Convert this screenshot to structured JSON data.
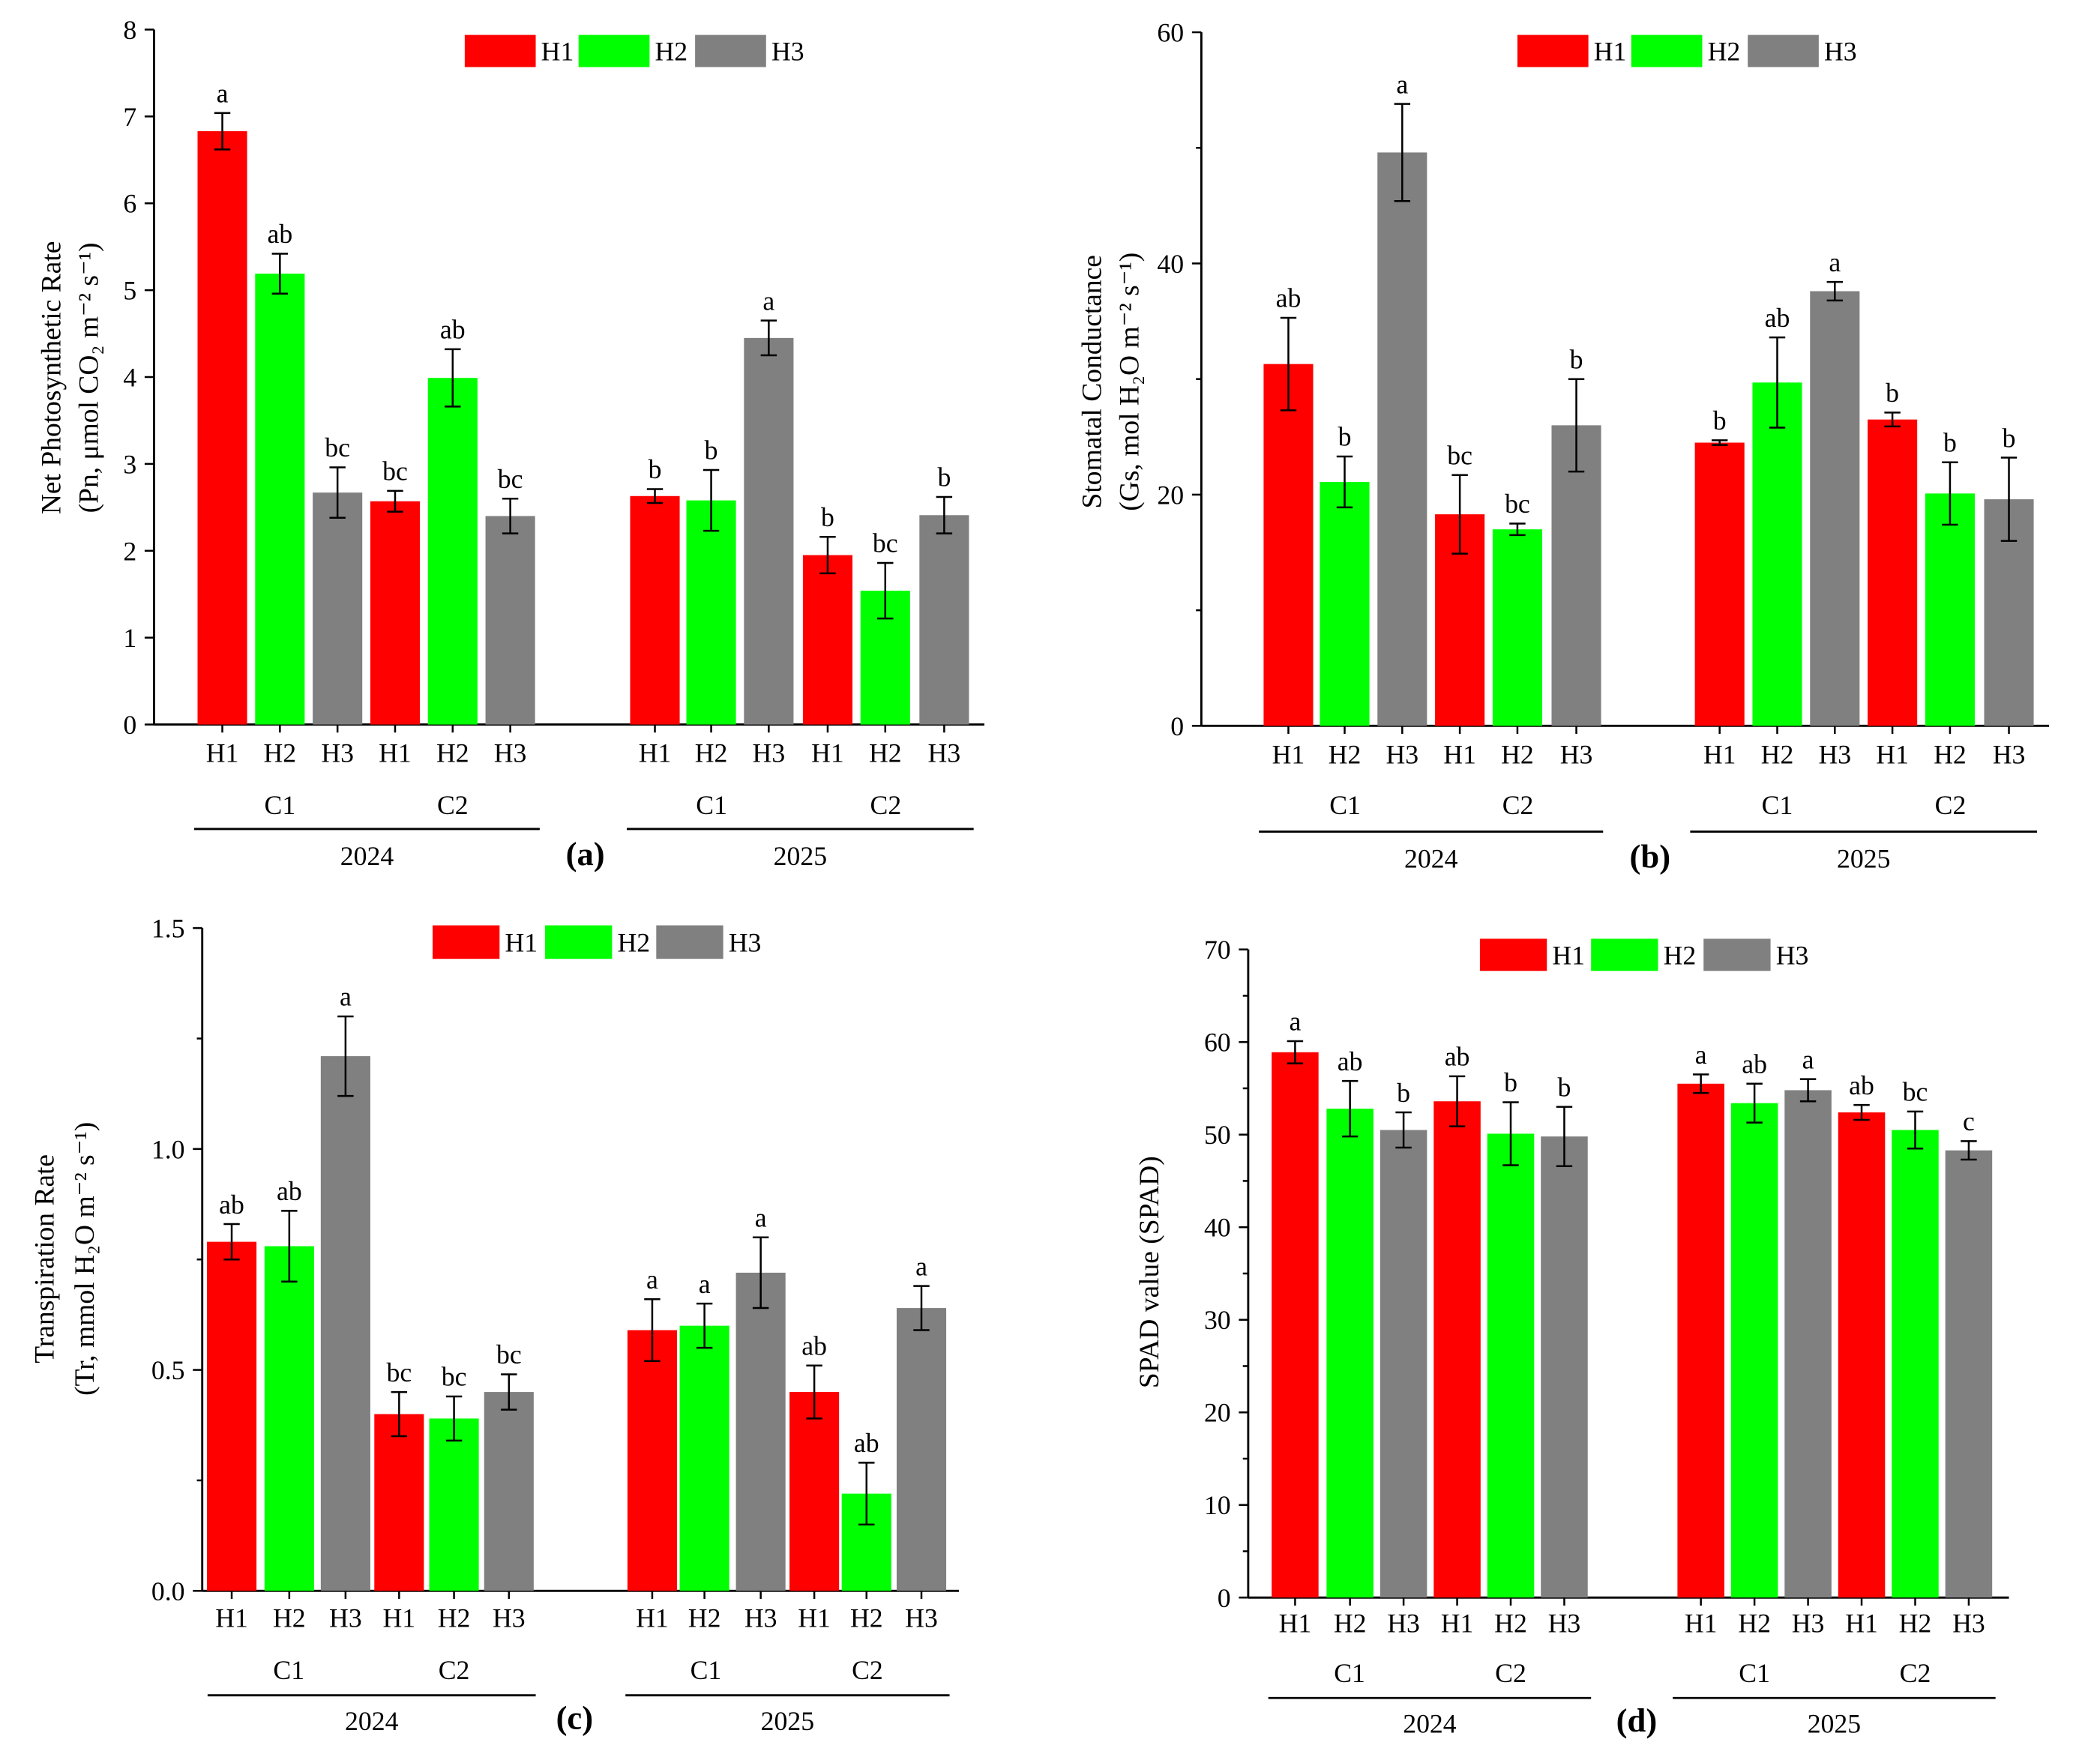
{
  "colors": {
    "H1": "#FF0000",
    "H2": "#00FF00",
    "H3": "#808080",
    "axis": "#000000"
  },
  "chart_data": [
    {
      "panel_label": "(a)",
      "type": "bar",
      "legend": [
        "H1",
        "H2",
        "H3"
      ],
      "ylabel": [
        "Net Photosynthetic Rate",
        "(Pn, μmol CO₂ m⁻² s⁻¹)"
      ],
      "ylim": [
        0,
        8
      ],
      "yticks": [
        "0",
        "1",
        "2",
        "3",
        "4",
        "5",
        "6",
        "7",
        "8"
      ],
      "years": [
        {
          "year": "2024",
          "groups": [
            {
              "label": "C1",
              "bars": [
                {
                  "category": "H1",
                  "value": 6.83,
                  "error": 0.21,
                  "letter": "a"
                },
                {
                  "category": "H2",
                  "value": 5.19,
                  "error": 0.23,
                  "letter": "ab"
                },
                {
                  "category": "H3",
                  "value": 2.67,
                  "error": 0.29,
                  "letter": "bc"
                }
              ]
            },
            {
              "label": "C2",
              "bars": [
                {
                  "category": "H1",
                  "value": 2.57,
                  "error": 0.12,
                  "letter": "bc"
                },
                {
                  "category": "H2",
                  "value": 3.99,
                  "error": 0.33,
                  "letter": "ab"
                },
                {
                  "category": "H3",
                  "value": 2.4,
                  "error": 0.2,
                  "letter": "bc"
                }
              ]
            }
          ]
        },
        {
          "year": "2025",
          "groups": [
            {
              "label": "C1",
              "bars": [
                {
                  "category": "H1",
                  "value": 2.63,
                  "error": 0.08,
                  "letter": "b"
                },
                {
                  "category": "H2",
                  "value": 2.58,
                  "error": 0.35,
                  "letter": "b"
                },
                {
                  "category": "H3",
                  "value": 4.45,
                  "error": 0.2,
                  "letter": "a"
                }
              ]
            },
            {
              "label": "C2",
              "bars": [
                {
                  "category": "H1",
                  "value": 1.95,
                  "error": 0.21,
                  "letter": "b"
                },
                {
                  "category": "H2",
                  "value": 1.54,
                  "error": 0.32,
                  "letter": "bc"
                },
                {
                  "category": "H3",
                  "value": 2.41,
                  "error": 0.21,
                  "letter": "b"
                }
              ]
            }
          ]
        }
      ]
    },
    {
      "panel_label": "(b)",
      "type": "bar",
      "legend": [
        "H1",
        "H2",
        "H3"
      ],
      "ylabel": [
        "Stomatal Conductance",
        "(Gs, mol H₂O m⁻² s⁻¹)"
      ],
      "ylim": [
        0,
        60
      ],
      "yticks": [
        "0",
        "20",
        "40",
        "60"
      ],
      "years": [
        {
          "year": "2024",
          "groups": [
            {
              "label": "C1",
              "bars": [
                {
                  "category": "H1",
                  "value": 31.3,
                  "error": 4.0,
                  "letter": "ab"
                },
                {
                  "category": "H2",
                  "value": 21.1,
                  "error": 2.2,
                  "letter": "b"
                },
                {
                  "category": "H3",
                  "value": 49.6,
                  "error": 4.2,
                  "letter": "a"
                }
              ]
            },
            {
              "label": "C2",
              "bars": [
                {
                  "category": "H1",
                  "value": 18.3,
                  "error": 3.4,
                  "letter": "bc"
                },
                {
                  "category": "H2",
                  "value": 17.0,
                  "error": 0.5,
                  "letter": "bc"
                },
                {
                  "category": "H3",
                  "value": 26.0,
                  "error": 4.0,
                  "letter": "b"
                }
              ]
            }
          ]
        },
        {
          "year": "2025",
          "groups": [
            {
              "label": "C1",
              "bars": [
                {
                  "category": "H1",
                  "value": 24.5,
                  "error": 0.2,
                  "letter": "b"
                },
                {
                  "category": "H2",
                  "value": 29.7,
                  "error": 3.9,
                  "letter": "ab"
                },
                {
                  "category": "H3",
                  "value": 37.6,
                  "error": 0.8,
                  "letter": "a"
                }
              ]
            },
            {
              "label": "C2",
              "bars": [
                {
                  "category": "H1",
                  "value": 26.5,
                  "error": 0.6,
                  "letter": "b"
                },
                {
                  "category": "H2",
                  "value": 20.1,
                  "error": 2.7,
                  "letter": "b"
                },
                {
                  "category": "H3",
                  "value": 19.6,
                  "error": 3.6,
                  "letter": "b"
                }
              ]
            }
          ]
        }
      ]
    },
    {
      "panel_label": "(c)",
      "type": "bar",
      "legend": [
        "H1",
        "H2",
        "H3"
      ],
      "ylabel": [
        "Transpiration Rate",
        "(Tr, mmol H₂O m⁻² s⁻¹)"
      ],
      "ylim": [
        0,
        1.5
      ],
      "yticks": [
        "0.0",
        "0.5",
        "1.0",
        "1.5"
      ],
      "years": [
        {
          "year": "2024",
          "groups": [
            {
              "label": "C1",
              "bars": [
                {
                  "category": "H1",
                  "value": 0.79,
                  "error": 0.04,
                  "letter": "ab"
                },
                {
                  "category": "H2",
                  "value": 0.78,
                  "error": 0.08,
                  "letter": "ab"
                },
                {
                  "category": "H3",
                  "value": 1.21,
                  "error": 0.09,
                  "letter": "a"
                }
              ]
            },
            {
              "label": "C2",
              "bars": [
                {
                  "category": "H1",
                  "value": 0.4,
                  "error": 0.05,
                  "letter": "bc"
                },
                {
                  "category": "H2",
                  "value": 0.39,
                  "error": 0.05,
                  "letter": "bc"
                },
                {
                  "category": "H3",
                  "value": 0.45,
                  "error": 0.04,
                  "letter": "bc"
                }
              ]
            }
          ]
        },
        {
          "year": "2025",
          "groups": [
            {
              "label": "C1",
              "bars": [
                {
                  "category": "H1",
                  "value": 0.59,
                  "error": 0.07,
                  "letter": "a"
                },
                {
                  "category": "H2",
                  "value": 0.6,
                  "error": 0.05,
                  "letter": "a"
                },
                {
                  "category": "H3",
                  "value": 0.72,
                  "error": 0.08,
                  "letter": "a"
                }
              ]
            },
            {
              "label": "C2",
              "bars": [
                {
                  "category": "H1",
                  "value": 0.45,
                  "error": 0.06,
                  "letter": "ab"
                },
                {
                  "category": "H2",
                  "value": 0.22,
                  "error": 0.07,
                  "letter": "ab"
                },
                {
                  "category": "H3",
                  "value": 0.64,
                  "error": 0.05,
                  "letter": "a"
                }
              ]
            }
          ]
        }
      ]
    },
    {
      "panel_label": "(d)",
      "type": "bar",
      "legend": [
        "H1",
        "H2",
        "H3"
      ],
      "ylabel": [
        "SPAD value (SPAD)"
      ],
      "ylim": [
        0,
        70
      ],
      "yticks": [
        "0",
        "10",
        "20",
        "30",
        "40",
        "50",
        "60",
        "70"
      ],
      "years": [
        {
          "year": "2024",
          "groups": [
            {
              "label": "C1",
              "bars": [
                {
                  "category": "H1",
                  "value": 58.9,
                  "error": 1.2,
                  "letter": "a"
                },
                {
                  "category": "H2",
                  "value": 52.8,
                  "error": 3.0,
                  "letter": "ab"
                },
                {
                  "category": "H3",
                  "value": 50.5,
                  "error": 1.9,
                  "letter": "b"
                }
              ]
            },
            {
              "label": "C2",
              "bars": [
                {
                  "category": "H1",
                  "value": 53.6,
                  "error": 2.7,
                  "letter": "ab"
                },
                {
                  "category": "H2",
                  "value": 50.1,
                  "error": 3.4,
                  "letter": "b"
                },
                {
                  "category": "H3",
                  "value": 49.8,
                  "error": 3.2,
                  "letter": "b"
                }
              ]
            }
          ]
        },
        {
          "year": "2025",
          "groups": [
            {
              "label": "C1",
              "bars": [
                {
                  "category": "H1",
                  "value": 55.5,
                  "error": 1.0,
                  "letter": "a"
                },
                {
                  "category": "H2",
                  "value": 53.4,
                  "error": 2.1,
                  "letter": "ab"
                },
                {
                  "category": "H3",
                  "value": 54.8,
                  "error": 1.2,
                  "letter": "a"
                }
              ]
            },
            {
              "label": "C2",
              "bars": [
                {
                  "category": "H1",
                  "value": 52.4,
                  "error": 0.8,
                  "letter": "ab"
                },
                {
                  "category": "H2",
                  "value": 50.5,
                  "error": 2.0,
                  "letter": "bc"
                },
                {
                  "category": "H3",
                  "value": 48.3,
                  "error": 1.0,
                  "letter": "c"
                }
              ]
            }
          ]
        }
      ]
    }
  ]
}
